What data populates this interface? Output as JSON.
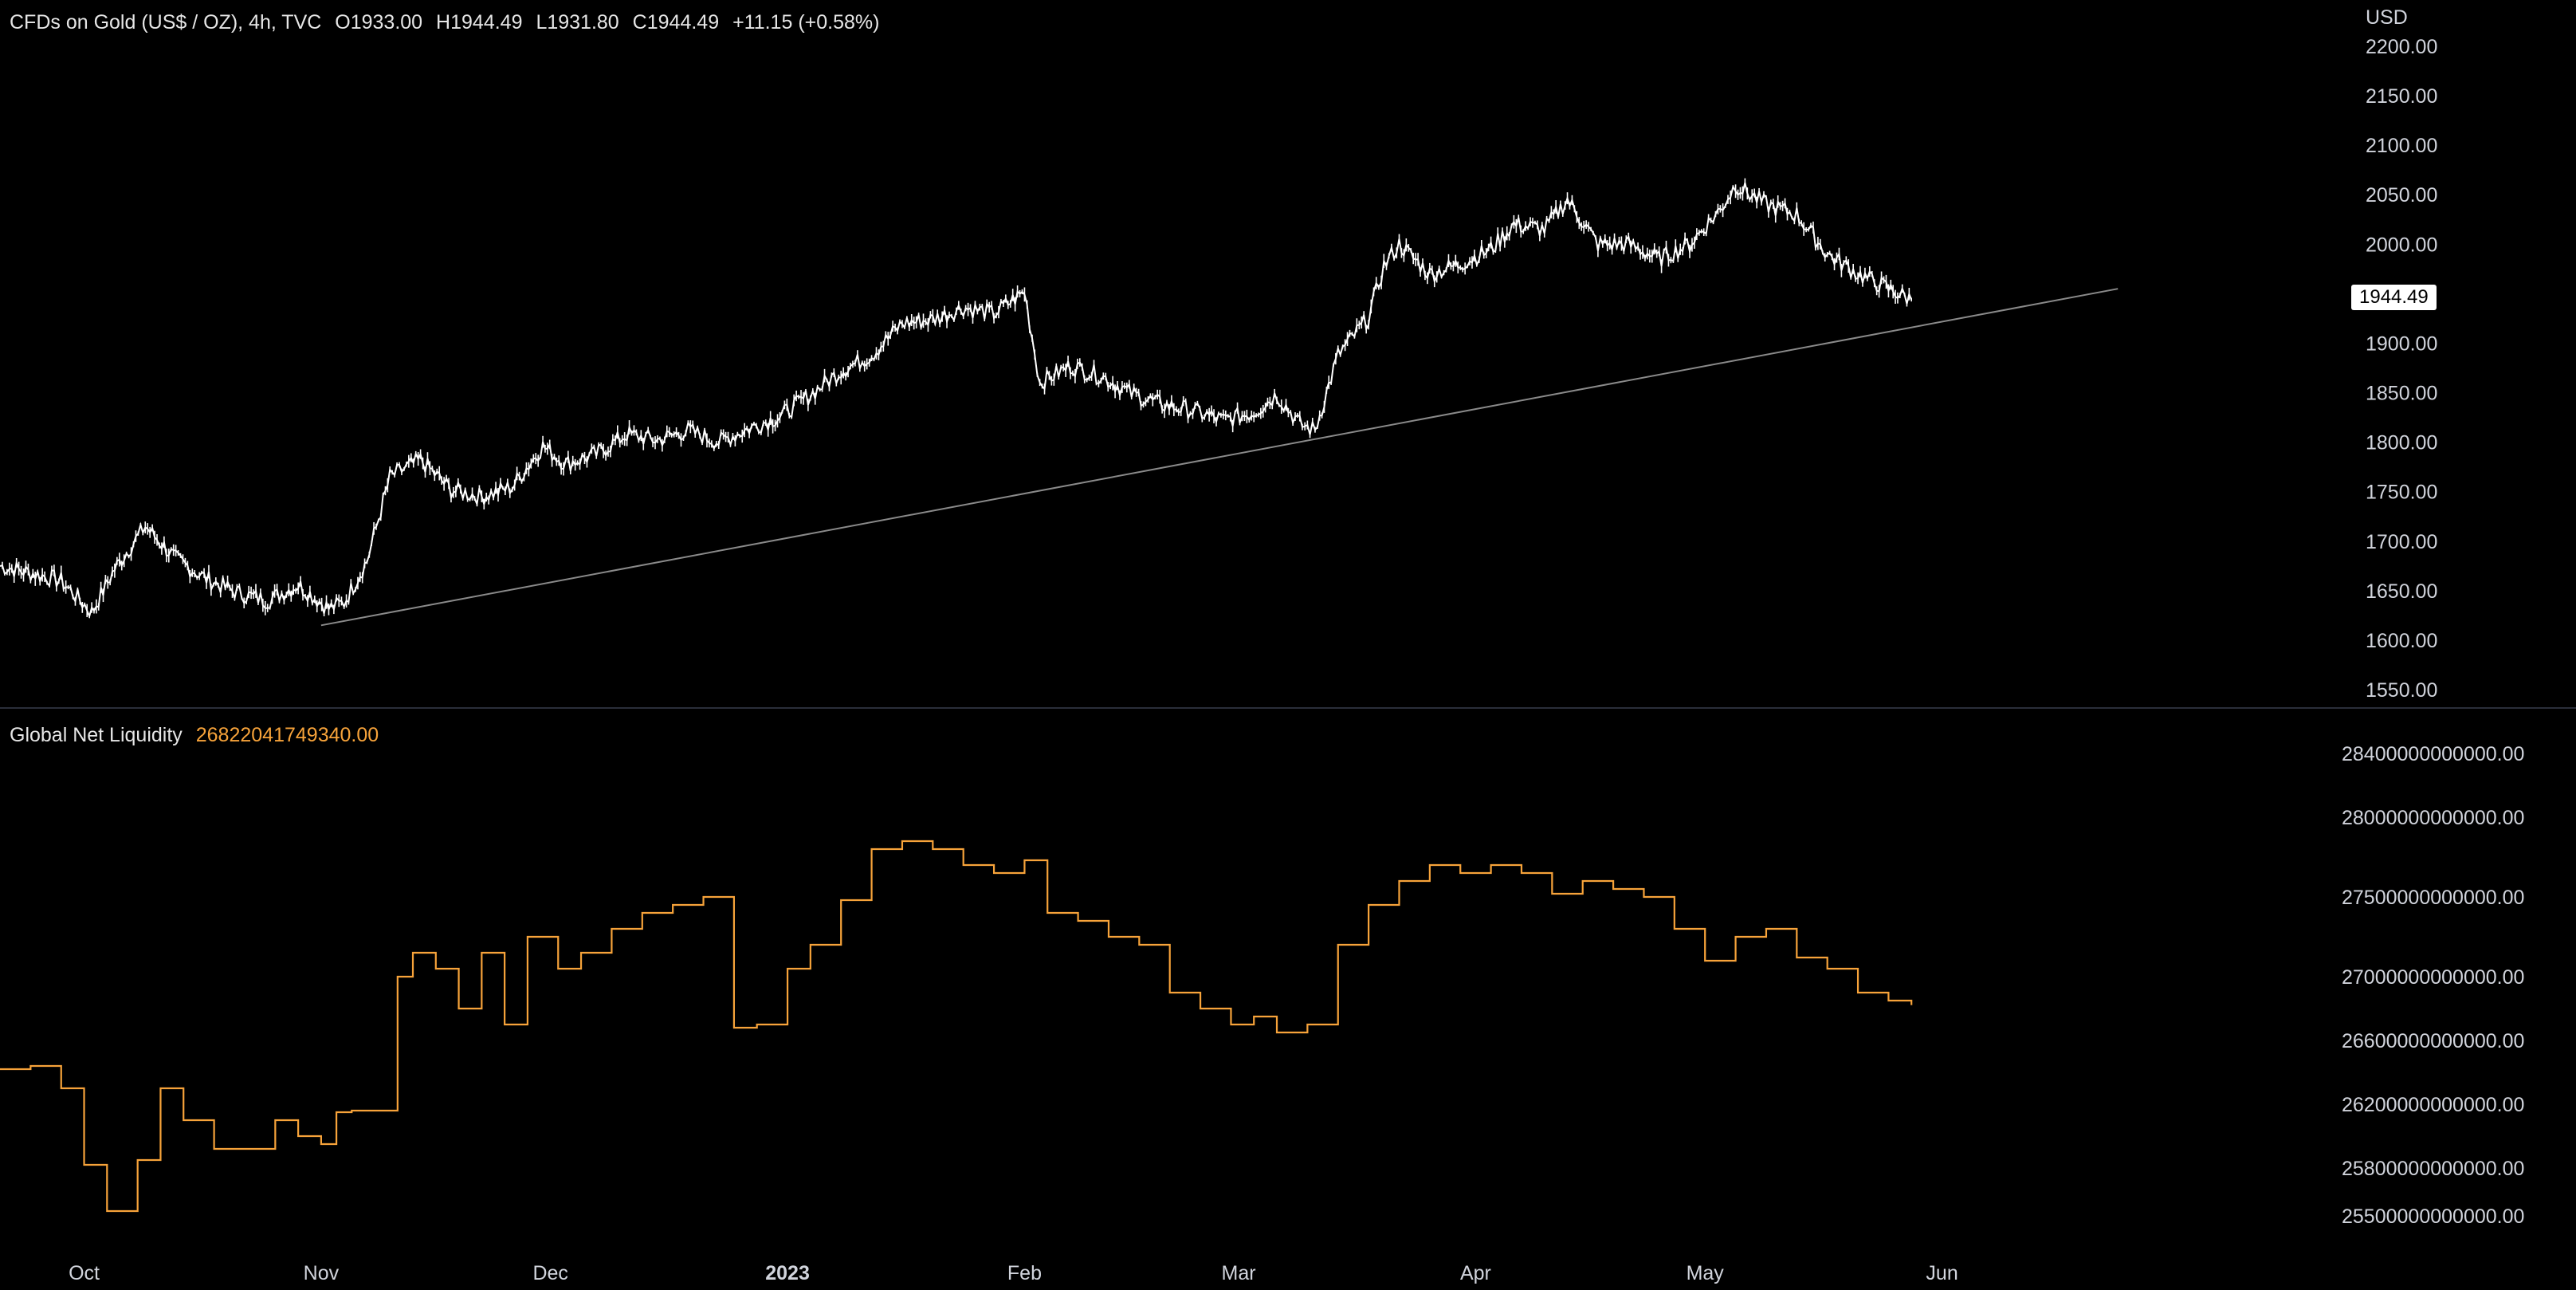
{
  "colors": {
    "background": "#000000",
    "gold_line": "#ffffff",
    "liquidity_line": "#f7a33a",
    "trendline": "#8a8a8a",
    "divider": "#2a2e39",
    "axis_text": "#d1d4dc"
  },
  "header": {
    "symbol": "CFDs on Gold (US$ / OZ), 4h, TVC",
    "open": "O1933.00",
    "high": "H1944.49",
    "low": "L1931.80",
    "close": "C1944.49",
    "change": "+11.15 (+0.58%)"
  },
  "indicator": {
    "name": "Global Net Liquidity",
    "value": "26822041749340.00"
  },
  "currency_label": "USD",
  "last_price_badge": "1944.49",
  "chart_data": [
    {
      "type": "line",
      "title": "CFDs on Gold (US$ / OZ), 4h, TVC",
      "ylabel": "USD",
      "ylim": [
        1550,
        2200
      ],
      "yticks": [
        "2200.00",
        "2150.00",
        "2100.00",
        "2050.00",
        "2000.00",
        "1900.00",
        "1850.00",
        "1800.00",
        "1750.00",
        "1700.00",
        "1650.00",
        "1600.00",
        "1550.00"
      ],
      "x_tick_labels": [
        "Oct",
        "Nov",
        "Dec",
        "2023",
        "Feb",
        "Mar",
        "Apr",
        "May",
        "Jun"
      ],
      "x_tick_dates": [
        "2022-10-01",
        "2022-11-01",
        "2022-12-01",
        "2023-01-01",
        "2023-02-01",
        "2023-03-01",
        "2023-04-01",
        "2023-05-01",
        "2023-06-01"
      ],
      "x_range": [
        "2022-09-20",
        "2023-07-24"
      ],
      "series": [
        {
          "name": "CFDs on Gold (US$ / OZ)",
          "x": [
            "2022-09-20",
            "2022-09-24",
            "2022-09-28",
            "2022-10-02",
            "2022-10-05",
            "2022-10-09",
            "2022-10-13",
            "2022-10-17",
            "2022-10-21",
            "2022-10-25",
            "2022-10-29",
            "2022-11-02",
            "2022-11-04",
            "2022-11-07",
            "2022-11-10",
            "2022-11-14",
            "2022-11-18",
            "2022-11-22",
            "2022-11-26",
            "2022-11-30",
            "2022-12-03",
            "2022-12-07",
            "2022-12-11",
            "2022-12-15",
            "2022-12-19",
            "2022-12-23",
            "2022-12-27",
            "2022-12-31",
            "2023-01-04",
            "2023-01-08",
            "2023-01-12",
            "2023-01-16",
            "2023-01-20",
            "2023-01-24",
            "2023-01-28",
            "2023-02-01",
            "2023-02-03",
            "2023-02-07",
            "2023-02-11",
            "2023-02-15",
            "2023-02-19",
            "2023-02-23",
            "2023-02-27",
            "2023-03-03",
            "2023-03-06",
            "2023-03-09",
            "2023-03-11",
            "2023-03-14",
            "2023-03-18",
            "2023-03-20",
            "2023-03-22",
            "2023-03-26",
            "2023-03-30",
            "2023-04-03",
            "2023-04-06",
            "2023-04-10",
            "2023-04-13",
            "2023-04-17",
            "2023-04-21",
            "2023-04-25",
            "2023-04-29",
            "2023-05-03",
            "2023-05-05",
            "2023-05-09",
            "2023-05-13",
            "2023-05-17",
            "2023-05-21",
            "2023-05-25",
            "2023-05-28"
          ],
          "values": [
            1675,
            1668,
            1660,
            1628,
            1672,
            1715,
            1682,
            1662,
            1648,
            1640,
            1656,
            1632,
            1638,
            1680,
            1765,
            1782,
            1752,
            1745,
            1755,
            1796,
            1778,
            1788,
            1808,
            1802,
            1812,
            1800,
            1814,
            1826,
            1848,
            1872,
            1888,
            1920,
            1924,
            1936,
            1930,
            1952,
            1860,
            1877,
            1867,
            1849,
            1838,
            1832,
            1822,
            1830,
            1848,
            1818,
            1812,
            1888,
            1926,
            1978,
            2000,
            1970,
            1980,
            1995,
            2020,
            2015,
            2045,
            2000,
            2000,
            1985,
            2000,
            2035,
            2060,
            2040,
            2030,
            1990,
            1970,
            1955,
            1944
          ]
        },
        {
          "name": "Trendline",
          "x": [
            "2022-11-01",
            "2023-06-24"
          ],
          "values": [
            1615,
            1955
          ]
        }
      ]
    },
    {
      "type": "line",
      "title": "Global Net Liquidity",
      "ylim": [
        25300000000000,
        28600000000000
      ],
      "yticks": [
        "28400000000000.00",
        "28000000000000.00",
        "27500000000000.00",
        "27000000000000.00",
        "26600000000000.00",
        "26200000000000.00",
        "25800000000000.00",
        "25500000000000.00"
      ],
      "series": [
        {
          "name": "Global Net Liquidity",
          "x": [
            "2022-09-20",
            "2022-09-24",
            "2022-09-28",
            "2022-10-01",
            "2022-10-04",
            "2022-10-08",
            "2022-10-11",
            "2022-10-14",
            "2022-10-18",
            "2022-10-22",
            "2022-10-26",
            "2022-10-29",
            "2022-11-01",
            "2022-11-03",
            "2022-11-05",
            "2022-11-08",
            "2022-11-11",
            "2022-11-13",
            "2022-11-16",
            "2022-11-19",
            "2022-11-22",
            "2022-11-25",
            "2022-11-28",
            "2022-12-02",
            "2022-12-05",
            "2022-12-09",
            "2022-12-13",
            "2022-12-17",
            "2022-12-21",
            "2022-12-25",
            "2022-12-28",
            "2023-01-01",
            "2023-01-04",
            "2023-01-08",
            "2023-01-12",
            "2023-01-16",
            "2023-01-20",
            "2023-01-24",
            "2023-01-28",
            "2023-02-01",
            "2023-02-04",
            "2023-02-08",
            "2023-02-12",
            "2023-02-16",
            "2023-02-20",
            "2023-02-24",
            "2023-02-28",
            "2023-03-03",
            "2023-03-06",
            "2023-03-10",
            "2023-03-14",
            "2023-03-18",
            "2023-03-22",
            "2023-03-26",
            "2023-03-30",
            "2023-04-03",
            "2023-04-07",
            "2023-04-11",
            "2023-04-15",
            "2023-04-19",
            "2023-04-23",
            "2023-04-27",
            "2023-05-01",
            "2023-05-05",
            "2023-05-09",
            "2023-05-13",
            "2023-05-17",
            "2023-05-21",
            "2023-05-25",
            "2023-05-28"
          ],
          "values": [
            26420000000000,
            26440000000000,
            26300000000000,
            25820000000000,
            25530000000000,
            25850000000000,
            26300000000000,
            26100000000000,
            25920000000000,
            25920000000000,
            26100000000000,
            26000000000000,
            25950000000000,
            26150000000000,
            26160000000000,
            26160000000000,
            27000000000000,
            27150000000000,
            27050000000000,
            26800000000000,
            27150000000000,
            26700000000000,
            27250000000000,
            27050000000000,
            27150000000000,
            27300000000000,
            27400000000000,
            27450000000000,
            27500000000000,
            26680000000000,
            26700000000000,
            27050000000000,
            27200000000000,
            27480000000000,
            27800000000000,
            27850000000000,
            27800000000000,
            27700000000000,
            27650000000000,
            27730000000000,
            27400000000000,
            27350000000000,
            27250000000000,
            27200000000000,
            26900000000000,
            26800000000000,
            26700000000000,
            26750000000000,
            26650000000000,
            26700000000000,
            27200000000000,
            27450000000000,
            27600000000000,
            27700000000000,
            27650000000000,
            27700000000000,
            27650000000000,
            27520000000000,
            27600000000000,
            27550000000000,
            27500000000000,
            27300000000000,
            27100000000000,
            27250000000000,
            27300000000000,
            27120000000000,
            27050000000000,
            26900000000000,
            26850000000000,
            26822041749340
          ]
        }
      ]
    }
  ]
}
